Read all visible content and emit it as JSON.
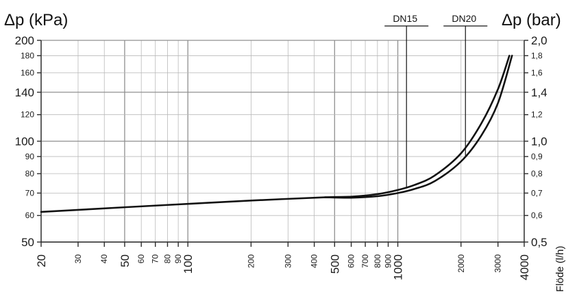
{
  "chart_data": {
    "type": "line",
    "title": "",
    "ylabel_left": "Δp (kPa)",
    "ylabel_right": "Δp (bar)",
    "xlabel": "Flöde (l/h)",
    "xscale": "log",
    "yscale": "log",
    "xlim": [
      20,
      4000
    ],
    "ylim": [
      50,
      200
    ],
    "grid": true,
    "x_ticks": [
      {
        "value": 20,
        "label": "20",
        "major": true
      },
      {
        "value": 30,
        "label": "30",
        "major": false
      },
      {
        "value": 40,
        "label": "40",
        "major": false
      },
      {
        "value": 50,
        "label": "50",
        "major": true
      },
      {
        "value": 60,
        "label": "60",
        "major": false
      },
      {
        "value": 70,
        "label": "70",
        "major": false
      },
      {
        "value": 80,
        "label": "80",
        "major": false
      },
      {
        "value": 90,
        "label": "90",
        "major": false
      },
      {
        "value": 100,
        "label": "100",
        "major": true
      },
      {
        "value": 200,
        "label": "200",
        "major": false
      },
      {
        "value": 300,
        "label": "300",
        "major": false
      },
      {
        "value": 400,
        "label": "400",
        "major": false
      },
      {
        "value": 500,
        "label": "500",
        "major": true
      },
      {
        "value": 600,
        "label": "600",
        "major": false
      },
      {
        "value": 700,
        "label": "700",
        "major": false
      },
      {
        "value": 800,
        "label": "800",
        "major": false
      },
      {
        "value": 900,
        "label": "900",
        "major": false
      },
      {
        "value": 1000,
        "label": "1000",
        "major": true
      },
      {
        "value": 2000,
        "label": "2000",
        "major": false
      },
      {
        "value": 3000,
        "label": "3000",
        "major": false
      },
      {
        "value": 4000,
        "label": "4000",
        "major": true
      }
    ],
    "y_ticks_left": [
      {
        "value": 50,
        "label": "50",
        "major": true
      },
      {
        "value": 60,
        "label": "60",
        "major": false
      },
      {
        "value": 70,
        "label": "70",
        "major": false
      },
      {
        "value": 80,
        "label": "80",
        "major": false
      },
      {
        "value": 90,
        "label": "90",
        "major": false
      },
      {
        "value": 100,
        "label": "100",
        "major": true
      },
      {
        "value": 120,
        "label": "120",
        "major": false
      },
      {
        "value": 140,
        "label": "140",
        "major": true
      },
      {
        "value": 160,
        "label": "160",
        "major": false
      },
      {
        "value": 180,
        "label": "180",
        "major": false
      },
      {
        "value": 200,
        "label": "200",
        "major": true
      }
    ],
    "y_ticks_right": [
      {
        "value": 50,
        "label": "0,5",
        "major": true
      },
      {
        "value": 60,
        "label": "0,6",
        "major": false
      },
      {
        "value": 70,
        "label": "0,7",
        "major": false
      },
      {
        "value": 80,
        "label": "0,8",
        "major": false
      },
      {
        "value": 90,
        "label": "0,9",
        "major": false
      },
      {
        "value": 100,
        "label": "1,0",
        "major": true
      },
      {
        "value": 120,
        "label": "1,2",
        "major": false
      },
      {
        "value": 140,
        "label": "1,4",
        "major": true
      },
      {
        "value": 160,
        "label": "1,6",
        "major": false
      },
      {
        "value": 180,
        "label": "1,8",
        "major": false
      },
      {
        "value": 200,
        "label": "2,0",
        "major": true
      }
    ],
    "series": [
      {
        "name": "DN15",
        "x": [
          20,
          50,
          100,
          200,
          450,
          600,
          800,
          1000,
          1200,
          1500,
          2000,
          2500,
          3000,
          3400
        ],
        "y": [
          61.5,
          63.5,
          65,
          66.5,
          68,
          68.3,
          69.5,
          71.5,
          74,
          79,
          92,
          113,
          143,
          180
        ],
        "label_x": 1100
      },
      {
        "name": "DN20",
        "x": [
          450,
          600,
          800,
          1000,
          1200,
          1500,
          2000,
          2500,
          3000,
          3500
        ],
        "y": [
          68,
          67.8,
          68.5,
          70,
          72,
          76,
          87,
          104,
          130,
          180
        ],
        "label_x": 2100
      }
    ]
  }
}
